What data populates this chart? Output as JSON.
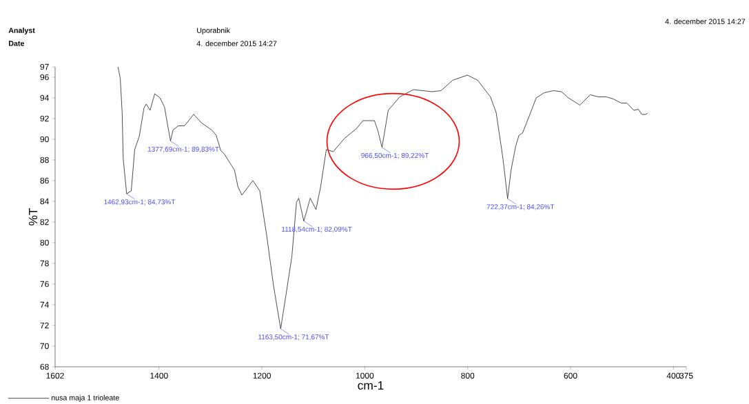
{
  "chart_data": {
    "type": "line",
    "xlabel": "cm-1",
    "ylabel": "%T",
    "xlim": [
      1602,
      375
    ],
    "ylim": [
      68,
      97
    ],
    "xticks": [
      1602,
      1400,
      1200,
      1000,
      800,
      600,
      400,
      375
    ],
    "yticks": [
      68,
      70,
      72,
      74,
      76,
      78,
      80,
      82,
      84,
      86,
      88,
      90,
      92,
      94,
      96,
      97
    ],
    "grid": false,
    "legend": "bottom left",
    "line_style": "solid",
    "series": [
      {
        "name": "nusa maja 1   trioleate",
        "color": "#202020",
        "x": [
          1479.8,
          1475.4,
          1471.7,
          1469.6,
          1462.93,
          1454.0,
          1447.3,
          1438.3,
          1429.4,
          1424.9,
          1417.4,
          1408.4,
          1398.1,
          1389.3,
          1383.4,
          1377.69,
          1372.7,
          1362.5,
          1350.5,
          1332.6,
          1317.8,
          1297.8,
          1288.9,
          1280.0,
          1273.3,
          1253.2,
          1246.5,
          1238.9,
          1217.5,
          1204.1,
          1190.7,
          1177.3,
          1163.5,
          1150.6,
          1141.7,
          1132.8,
          1128.4,
          1118.54,
          1106.0,
          1094.9,
          1085.9,
          1074.8,
          1061.4,
          1039.1,
          1016.8,
          1003.4,
          981.2,
          974.4,
          966.5,
          954.4,
          932.0,
          905.3,
          869.5,
          851.8,
          829.4,
          800.5,
          780.4,
          755.8,
          744.7,
          731.3,
          722.37,
          715.7,
          706.8,
          700.1,
          693.4,
          682.2,
          666.7,
          651.0,
          633.2,
          617.6,
          604.2,
          581.8,
          561.8,
          546.2,
          530.6,
          517.2,
          501.5,
          490.4,
          477.1,
          468.1,
          461.4,
          454.7,
          450.3
        ],
        "values": [
          97.0,
          95.9,
          92.6,
          88.1,
          84.73,
          85.0,
          89.0,
          90.3,
          93.0,
          93.4,
          92.8,
          94.4,
          94.0,
          93.1,
          91.4,
          89.83,
          90.9,
          91.3,
          91.3,
          92.4,
          91.6,
          90.9,
          90.4,
          88.9,
          88.6,
          87.0,
          85.4,
          84.6,
          86.0,
          85.0,
          80.7,
          75.8,
          71.67,
          75.8,
          78.7,
          83.9,
          84.3,
          82.09,
          84.3,
          83.2,
          85.4,
          89.0,
          88.8,
          90.1,
          91.0,
          91.8,
          91.8,
          90.8,
          89.22,
          92.8,
          94.1,
          94.8,
          94.6,
          94.7,
          95.7,
          96.2,
          95.7,
          94.1,
          92.6,
          88.1,
          84.26,
          87.0,
          89.3,
          90.4,
          90.6,
          92.0,
          94.0,
          94.5,
          94.7,
          94.6,
          94.0,
          93.3,
          94.3,
          94.1,
          94.1,
          93.9,
          93.5,
          93.5,
          92.8,
          92.9,
          92.4,
          92.4,
          92.5
        ]
      }
    ],
    "annotations": [
      "Analyst",
      "Uporabnik",
      "Date",
      "4. december 2015 14:27",
      "4. december 2015 14:27",
      {
        "text": "1462,93cm-1; 84,73%T",
        "x": 1462.93,
        "y": 84.73
      },
      {
        "text": "1377,69cm-1; 89,83%T",
        "x": 1377.69,
        "y": 89.83
      },
      {
        "text": "1163,50cm-1; 71,67%T",
        "x": 1163.5,
        "y": 71.67
      },
      {
        "text": "1118,54cm-1; 82,09%T",
        "x": 1118.54,
        "y": 82.09
      },
      {
        "text": "966,50cm-1; 89,22%T",
        "x": 966.5,
        "y": 89.22
      },
      {
        "text": "722,37cm-1; 84,26%T",
        "x": 722.37,
        "y": 84.26
      }
    ]
  }
}
